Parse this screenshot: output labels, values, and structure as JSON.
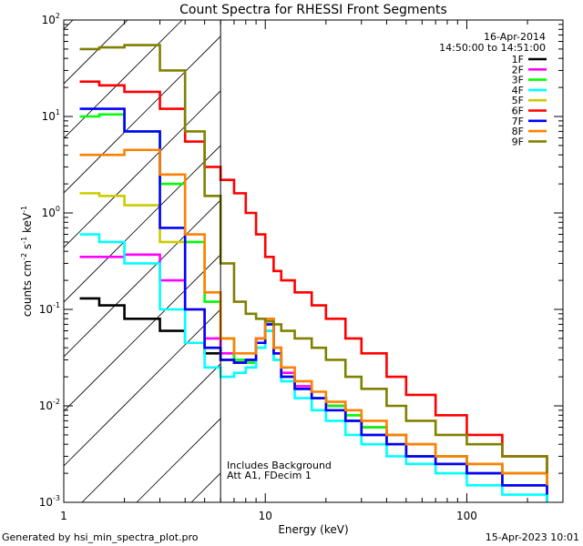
{
  "chart_data": {
    "type": "line",
    "title": "Count Spectra for RHESSI Front Segments",
    "xlabel": "Energy (keV)",
    "ylabel_parts": {
      "base": "counts cm",
      "exp1": "-2",
      "mid1": " s",
      "exp2": "-1",
      "mid2": " keV",
      "exp3": "-1"
    },
    "x_scale": "log",
    "y_scale": "log",
    "xlim": [
      1,
      300
    ],
    "ylim": [
      0.001,
      100
    ],
    "x_ticks": [
      {
        "value": 1,
        "label": "1"
      },
      {
        "value": 10,
        "label": "10"
      },
      {
        "value": 100,
        "label": "100"
      }
    ],
    "y_ticks": [
      {
        "value": 0.001,
        "base": "10",
        "exp": "-3"
      },
      {
        "value": 0.01,
        "base": "10",
        "exp": "-2"
      },
      {
        "value": 0.1,
        "base": "10",
        "exp": "-1"
      },
      {
        "value": 1,
        "base": "10",
        "exp": "0"
      },
      {
        "value": 10,
        "base": "10",
        "exp": "1"
      },
      {
        "value": 100,
        "base": "10",
        "exp": "2"
      }
    ],
    "date_label": "16-Apr-2014",
    "time_label": "14:50:00 to 14:51:00",
    "hatch_region_end_kev": 6,
    "annotations": [
      "Includes Background",
      "Att A1, FDecim 1"
    ],
    "series": [
      {
        "name": "1F",
        "color": "#000000",
        "x": [
          1.2,
          1.5,
          2,
          3,
          4,
          5,
          6,
          7,
          8,
          9,
          10,
          11,
          12,
          14,
          17,
          20,
          25,
          30,
          40,
          50,
          70,
          100,
          150,
          250
        ],
        "y": [
          0.13,
          0.11,
          0.08,
          0.06,
          0.045,
          0.035,
          0.03,
          0.028,
          0.03,
          0.05,
          0.08,
          0.04,
          0.02,
          0.015,
          0.012,
          0.01,
          0.007,
          0.005,
          0.004,
          0.003,
          0.0025,
          0.002,
          0.0015,
          0.001
        ]
      },
      {
        "name": "2F",
        "color": "#ff00ff",
        "x": [
          1.2,
          1.5,
          2,
          3,
          4,
          5,
          6,
          7,
          8,
          9,
          10,
          11,
          12,
          14,
          17,
          20,
          25,
          30,
          40,
          50,
          70,
          100,
          150,
          250
        ],
        "y": [
          0.35,
          0.35,
          0.37,
          0.2,
          0.1,
          0.05,
          0.035,
          0.028,
          0.03,
          0.05,
          0.07,
          0.035,
          0.022,
          0.016,
          0.012,
          0.01,
          0.008,
          0.006,
          0.005,
          0.004,
          0.003,
          0.0025,
          0.002,
          0.0015
        ]
      },
      {
        "name": "3F",
        "color": "#00ff00",
        "x": [
          1.2,
          1.5,
          2,
          3,
          4,
          5,
          6,
          7,
          8,
          9,
          10,
          11,
          12,
          14,
          17,
          20,
          25,
          30,
          40,
          50,
          70,
          100,
          150,
          250
        ],
        "y": [
          10,
          10.5,
          7,
          2,
          0.5,
          0.12,
          0.05,
          0.03,
          0.028,
          0.04,
          0.06,
          0.03,
          0.02,
          0.015,
          0.012,
          0.01,
          0.008,
          0.006,
          0.005,
          0.004,
          0.003,
          0.0025,
          0.002,
          0.0015
        ]
      },
      {
        "name": "4F",
        "color": "#00ffff",
        "x": [
          1.2,
          1.5,
          2,
          3,
          4,
          5,
          6,
          7,
          8,
          9,
          10,
          11,
          12,
          14,
          17,
          20,
          25,
          30,
          40,
          50,
          70,
          100,
          150,
          250
        ],
        "y": [
          0.6,
          0.5,
          0.3,
          0.1,
          0.045,
          0.025,
          0.02,
          0.022,
          0.025,
          0.04,
          0.06,
          0.03,
          0.018,
          0.012,
          0.009,
          0.007,
          0.005,
          0.004,
          0.003,
          0.0025,
          0.002,
          0.0015,
          0.0012,
          0.001
        ]
      },
      {
        "name": "5F",
        "color": "#cccc00",
        "x": [
          1.2,
          1.5,
          2,
          3,
          4,
          5,
          6,
          7,
          8,
          9,
          10,
          11,
          12,
          14,
          17,
          20,
          25,
          30,
          40,
          50,
          70,
          100,
          150,
          250
        ],
        "y": [
          1.6,
          1.5,
          1.2,
          0.5,
          0.1,
          0.04,
          0.03,
          0.028,
          0.03,
          0.045,
          0.07,
          0.035,
          0.02,
          0.015,
          0.012,
          0.009,
          0.007,
          0.005,
          0.004,
          0.003,
          0.0025,
          0.002,
          0.0015,
          0.0012
        ]
      },
      {
        "name": "6F",
        "color": "#ff0000",
        "x": [
          1.2,
          1.5,
          2,
          3,
          4,
          5,
          6,
          7,
          8,
          9,
          10,
          11,
          12,
          14,
          17,
          20,
          25,
          30,
          40,
          50,
          70,
          100,
          150,
          250
        ],
        "y": [
          23,
          21,
          18,
          12,
          5.5,
          3,
          2.2,
          1.6,
          1,
          0.6,
          0.35,
          0.25,
          0.2,
          0.15,
          0.11,
          0.08,
          0.05,
          0.035,
          0.02,
          0.013,
          0.008,
          0.005,
          0.003,
          0.002
        ]
      },
      {
        "name": "7F",
        "color": "#0000ff",
        "x": [
          1.2,
          1.5,
          2,
          3,
          4,
          5,
          6,
          7,
          8,
          9,
          10,
          11,
          12,
          14,
          17,
          20,
          25,
          30,
          40,
          50,
          70,
          100,
          150,
          250
        ],
        "y": [
          12,
          12,
          7,
          0.7,
          0.1,
          0.04,
          0.03,
          0.028,
          0.03,
          0.045,
          0.07,
          0.035,
          0.02,
          0.015,
          0.012,
          0.009,
          0.007,
          0.005,
          0.004,
          0.003,
          0.0025,
          0.002,
          0.0015,
          0.0012
        ]
      },
      {
        "name": "8F",
        "color": "#ff8000",
        "x": [
          1.2,
          1.5,
          2,
          3,
          4,
          5,
          6,
          7,
          8,
          9,
          10,
          11,
          12,
          14,
          17,
          20,
          25,
          30,
          40,
          50,
          70,
          100,
          150,
          250
        ],
        "y": [
          4,
          4,
          4.5,
          2.5,
          0.6,
          0.15,
          0.05,
          0.035,
          0.035,
          0.05,
          0.08,
          0.04,
          0.025,
          0.018,
          0.014,
          0.011,
          0.009,
          0.007,
          0.005,
          0.004,
          0.003,
          0.0025,
          0.002,
          0.0015
        ]
      },
      {
        "name": "9F",
        "color": "#808000",
        "x": [
          1.2,
          1.5,
          2,
          3,
          4,
          5,
          6,
          7,
          8,
          9,
          10,
          11,
          12,
          14,
          17,
          20,
          25,
          30,
          40,
          50,
          70,
          100,
          150,
          250
        ],
        "y": [
          50,
          52,
          55,
          30,
          7,
          1.5,
          0.3,
          0.12,
          0.09,
          0.08,
          0.075,
          0.07,
          0.06,
          0.05,
          0.04,
          0.03,
          0.02,
          0.015,
          0.01,
          0.007,
          0.005,
          0.004,
          0.003,
          0.002
        ]
      }
    ]
  },
  "footer": {
    "left": "Generated by hsi_min_spectra_plot.pro",
    "right": "15-Apr-2023 10:01"
  }
}
